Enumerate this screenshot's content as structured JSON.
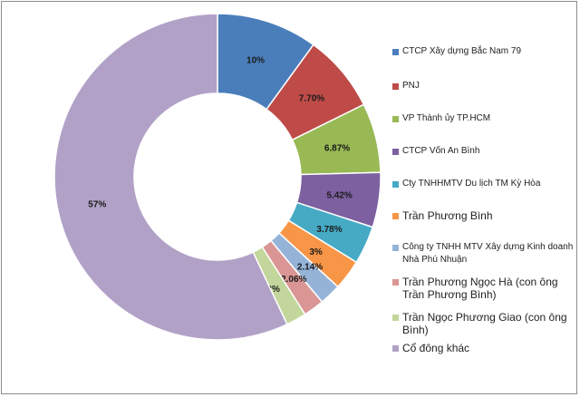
{
  "chart_data": {
    "type": "pie",
    "donut": true,
    "title": "",
    "legend_position": "right",
    "slices": [
      {
        "label": "CTCP Xây dựng Bắc Nam 79",
        "value": 10,
        "display": "10%",
        "color": "#4a7ebb"
      },
      {
        "label": "PNJ",
        "value": 7.7,
        "display": "7.70%",
        "color": "#be4b48"
      },
      {
        "label": "VP Thành ủy TP.HCM",
        "value": 6.87,
        "display": "6.87%",
        "color": "#98b954"
      },
      {
        "label": "CTCP Vốn An Bình",
        "value": 5.42,
        "display": "5.42%",
        "color": "#7d60a0"
      },
      {
        "label": "Cty TNHHMTV Du lịch TM Kỳ Hòa",
        "value": 3.78,
        "display": "3.78%",
        "color": "#46aac5"
      },
      {
        "label": "Trần Phương Bình",
        "value": 3,
        "display": "3%",
        "color": "#f79646"
      },
      {
        "label": "Công ty TNHH MTV Xây dựng Kinh doanh Nhà Phú Nhuận",
        "value": 2.14,
        "display": "2.14%",
        "color": "#95b3d7"
      },
      {
        "label": "Trần Phương Ngọc Hà (con ông Trần Phương Bình)",
        "value": 2.06,
        "display": "2.06%",
        "color": "#d99694"
      },
      {
        "label": "Trần Ngọc Phương Giao (con ông Bình)",
        "value": 2,
        "display": "2%",
        "color": "#c3d69b"
      },
      {
        "label": "Cổ đông khác",
        "value": 57,
        "display": "57%",
        "color": "#b2a1c7"
      }
    ]
  }
}
